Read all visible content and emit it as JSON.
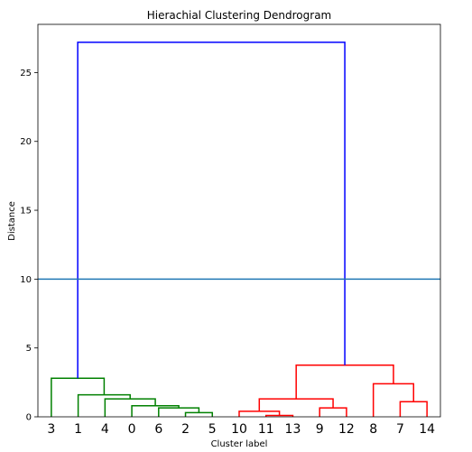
{
  "chart_data": {
    "type": "dendrogram",
    "title": "Hierachial Clustering Dendrogram",
    "xlabel": "Cluster label",
    "ylabel": "Distance",
    "ylim": [
      0,
      28.5
    ],
    "yticks": [
      0,
      5,
      10,
      15,
      20,
      25
    ],
    "leaf_labels": [
      "3",
      "1",
      "4",
      "0",
      "6",
      "2",
      "5",
      "10",
      "11",
      "13",
      "9",
      "12",
      "8",
      "7",
      "14"
    ],
    "threshold_line": {
      "y": 10,
      "color": "#1f77b4"
    },
    "merges": [
      {
        "left": 5,
        "right": 6,
        "height": 0.3,
        "color": "#008000"
      },
      {
        "left": 4,
        "right": "5+6",
        "height": 0.65,
        "color": "#008000"
      },
      {
        "left": 3,
        "right": "4+5+6",
        "height": 0.8,
        "color": "#008000"
      },
      {
        "left": 2,
        "right": "3-6",
        "height": 1.3,
        "color": "#008000"
      },
      {
        "left": 1,
        "right": "2-6",
        "height": 1.6,
        "color": "#008000"
      },
      {
        "left": 0,
        "right": "1-6",
        "height": 2.8,
        "color": "#008000"
      },
      {
        "left": 8,
        "right": 9,
        "height": 0.1,
        "color": "#ff0000"
      },
      {
        "left": 7,
        "right": "8+9",
        "height": 0.4,
        "color": "#ff0000"
      },
      {
        "left": 10,
        "right": 11,
        "height": 0.65,
        "color": "#ff0000"
      },
      {
        "left": "7-9",
        "right": "10+11",
        "height": 1.3,
        "color": "#ff0000"
      },
      {
        "left": 13,
        "right": 14,
        "height": 1.1,
        "color": "#ff0000"
      },
      {
        "left": 12,
        "right": "13+14",
        "height": 2.4,
        "color": "#ff0000"
      },
      {
        "left": "7-11",
        "right": "12-14",
        "height": 3.75,
        "color": "#ff0000"
      },
      {
        "left": "0-6",
        "right": "7-14",
        "height": 27.2,
        "color": "#0000ff"
      }
    ]
  }
}
